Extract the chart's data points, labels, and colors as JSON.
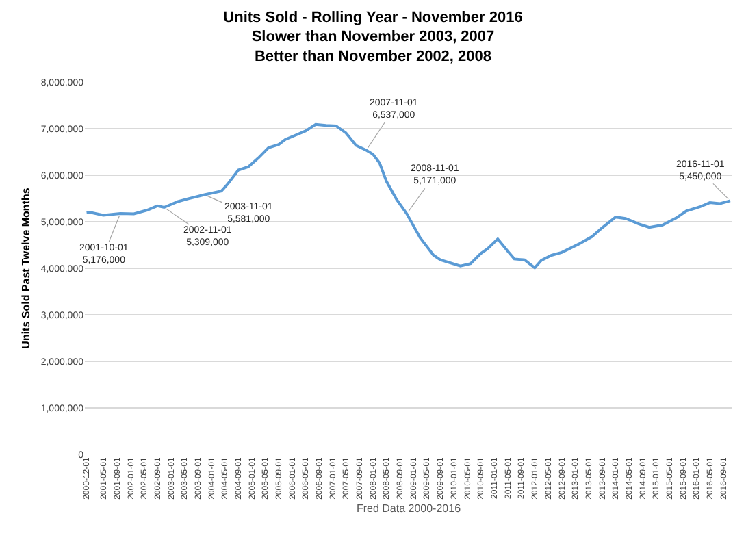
{
  "chart_data": {
    "type": "line",
    "title": "Units Sold - Rolling Year - November 2016\nSlower than November 2003, 2007\nBetter than November 2002, 2008",
    "xlabel": "Fred Data 2000-2016",
    "ylabel": "Units Sold Past Twelve Months",
    "x": [
      "2000-12",
      "2001-01",
      "2001-05",
      "2001-10",
      "2002-02",
      "2002-06",
      "2002-09",
      "2002-11",
      "2003-03",
      "2003-06",
      "2003-11",
      "2004-04",
      "2004-06",
      "2004-09",
      "2004-12",
      "2005-03",
      "2005-06",
      "2005-09",
      "2005-11",
      "2006-02",
      "2006-05",
      "2006-08",
      "2006-11",
      "2007-02",
      "2007-05",
      "2007-08",
      "2007-11",
      "2008-01",
      "2008-03",
      "2008-05",
      "2008-08",
      "2008-11",
      "2009-03",
      "2009-07",
      "2009-09",
      "2010-03",
      "2010-06",
      "2010-09",
      "2010-11",
      "2011-02",
      "2011-05",
      "2011-07",
      "2011-10",
      "2012-01",
      "2012-03",
      "2012-06",
      "2012-09",
      "2013-02",
      "2013-06",
      "2013-09",
      "2014-01",
      "2014-04",
      "2014-08",
      "2014-11",
      "2015-03",
      "2015-07",
      "2015-10",
      "2016-02",
      "2016-05",
      "2016-08",
      "2016-11"
    ],
    "series": [
      {
        "color": "#5b9bd5",
        "values": [
          5190000,
          5200000,
          5140000,
          5176000,
          5170000,
          5250000,
          5340000,
          5309000,
          5430000,
          5490000,
          5581000,
          5660000,
          5820000,
          6110000,
          6180000,
          6370000,
          6590000,
          6660000,
          6770000,
          6860000,
          6950000,
          7090000,
          7070000,
          7060000,
          6910000,
          6640000,
          6537000,
          6450000,
          6260000,
          5870000,
          5480000,
          5171000,
          4660000,
          4280000,
          4180000,
          4050000,
          4100000,
          4320000,
          4420000,
          4630000,
          4370000,
          4200000,
          4180000,
          4010000,
          4170000,
          4280000,
          4340000,
          4520000,
          4680000,
          4870000,
          5100000,
          5070000,
          4950000,
          4880000,
          4930000,
          5080000,
          5230000,
          5320000,
          5410000,
          5390000,
          5450000
        ]
      }
    ],
    "annotations": [
      {
        "text": "2001-10-01\n5,176,000",
        "x": "2001-10",
        "y": 5176000
      },
      {
        "text": "2002-11-01\n5,309,000",
        "x": "2002-11",
        "y": 5309000
      },
      {
        "text": "2003-11-01\n5,581,000",
        "x": "2003-11",
        "y": 5581000
      },
      {
        "text": "2007-11-01\n6,537,000",
        "x": "2007-11",
        "y": 6537000
      },
      {
        "text": "2008-11-01\n5,171,000",
        "x": "2008-11",
        "y": 5171000
      },
      {
        "text": "2016-11-01\n5,450,000",
        "x": "2016-11",
        "y": 5450000
      }
    ],
    "xlim": [
      "2000-11-15",
      "2016-11-20"
    ],
    "xticks": [
      {
        "value": "2000-12-01",
        "label": "2000-12-01"
      },
      {
        "value": "2001-05-01",
        "label": "2001-05-01"
      },
      {
        "value": "2001-09-01",
        "label": "2001-09-01"
      },
      {
        "value": "2002-01-01",
        "label": "2002-01-01"
      },
      {
        "value": "2002-05-01",
        "label": "2002-05-01"
      },
      {
        "value": "2002-09-01",
        "label": "2002-09-01"
      },
      {
        "value": "2003-01-01",
        "label": "2003-01-01"
      },
      {
        "value": "2003-05-01",
        "label": "2003-05-01"
      },
      {
        "value": "2003-09-01",
        "label": "2003-09-01"
      },
      {
        "value": "2004-01-01",
        "label": "2004-01-01"
      },
      {
        "value": "2004-05-01",
        "label": "2004-05-01"
      },
      {
        "value": "2004-09-01",
        "label": "2004-09-01"
      },
      {
        "value": "2005-01-01",
        "label": "2005-01-01"
      },
      {
        "value": "2005-05-01",
        "label": "2005-05-01"
      },
      {
        "value": "2005-09-01",
        "label": "2005-09-01"
      },
      {
        "value": "2006-01-01",
        "label": "2006-01-01"
      },
      {
        "value": "2006-05-01",
        "label": "2006-05-01"
      },
      {
        "value": "2006-09-01",
        "label": "2006-09-01"
      },
      {
        "value": "2007-01-01",
        "label": "2007-01-01"
      },
      {
        "value": "2007-05-01",
        "label": "2007-05-01"
      },
      {
        "value": "2007-09-01",
        "label": "2007-09-01"
      },
      {
        "value": "2008-01-01",
        "label": "2008-01-01"
      },
      {
        "value": "2008-05-01",
        "label": "2008-05-01"
      },
      {
        "value": "2008-09-01",
        "label": "2008-09-01"
      },
      {
        "value": "2009-01-01",
        "label": "2009-01-01"
      },
      {
        "value": "2009-05-01",
        "label": "2009-05-01"
      },
      {
        "value": "2009-09-01",
        "label": "2009-09-01"
      },
      {
        "value": "2010-01-01",
        "label": "2010-01-01"
      },
      {
        "value": "2010-05-01",
        "label": "2010-05-01"
      },
      {
        "value": "2010-09-01",
        "label": "2010-09-01"
      },
      {
        "value": "2011-01-01",
        "label": "2011-01-01"
      },
      {
        "value": "2011-05-01",
        "label": "2011-05-01"
      },
      {
        "value": "2011-09-01",
        "label": "2011-09-01"
      },
      {
        "value": "2012-01-01",
        "label": "2012-01-01"
      },
      {
        "value": "2012-05-01",
        "label": "2012-05-01"
      },
      {
        "value": "2012-09-01",
        "label": "2012-09-01"
      },
      {
        "value": "2013-01-01",
        "label": "2013-01-01"
      },
      {
        "value": "2013-05-01",
        "label": "2013-05-01"
      },
      {
        "value": "2013-09-01",
        "label": "2013-09-01"
      },
      {
        "value": "2014-01-01",
        "label": "2014-01-01"
      },
      {
        "value": "2014-05-01",
        "label": "2014-05-01"
      },
      {
        "value": "2014-09-01",
        "label": "2014-09-01"
      },
      {
        "value": "2015-01-01",
        "label": "2015-01-01"
      },
      {
        "value": "2015-05-01",
        "label": "2015-05-01"
      },
      {
        "value": "2015-09-01",
        "label": "2015-09-01"
      },
      {
        "value": "2016-01-01",
        "label": "2016-01-01"
      },
      {
        "value": "2016-05-01",
        "label": "2016-05-01"
      },
      {
        "value": "2016-09-01",
        "label": "2016-09-01"
      }
    ],
    "ylim": [
      0,
      8000000
    ],
    "yticks": [
      {
        "value": 0,
        "label": "0"
      },
      {
        "value": 1000000,
        "label": "1,000,000"
      },
      {
        "value": 2000000,
        "label": "2,000,000"
      },
      {
        "value": 3000000,
        "label": "3,000,000"
      },
      {
        "value": 4000000,
        "label": "4,000,000"
      },
      {
        "value": 5000000,
        "label": "5,000,000"
      },
      {
        "value": 6000000,
        "label": "6,000,000"
      },
      {
        "value": 7000000,
        "label": "7,000,000"
      },
      {
        "value": 8000000,
        "label": "8,000,000"
      }
    ],
    "grid": "y",
    "marker": "none",
    "line_style": "solid"
  }
}
